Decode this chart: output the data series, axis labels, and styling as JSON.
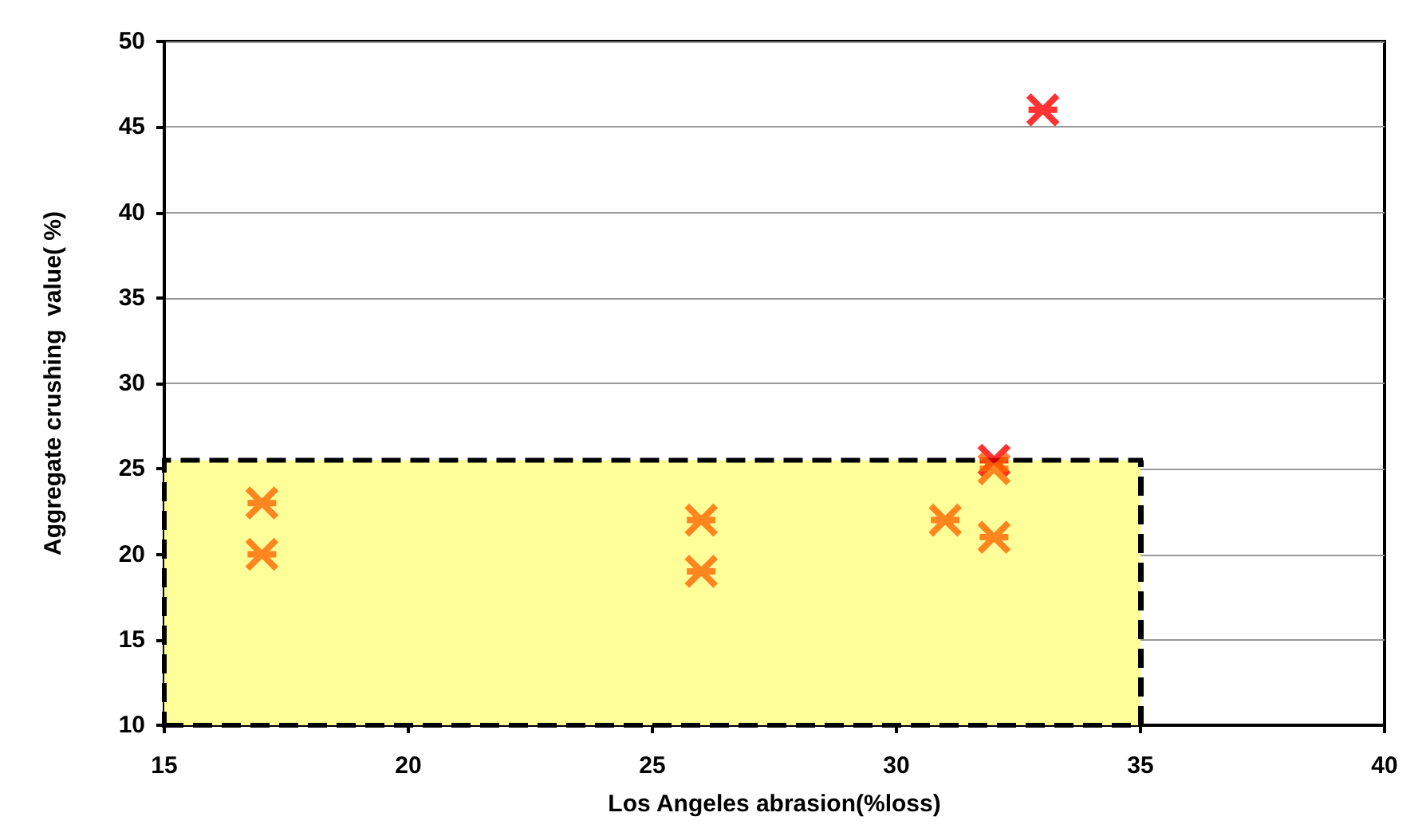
{
  "chart_data": {
    "type": "scatter",
    "xlabel": "Los Angeles abrasion(%loss)",
    "ylabel": "Aggregate crushing  value( %)",
    "xlim": [
      15,
      40
    ],
    "xticks": [
      15,
      20,
      25,
      30,
      35,
      40
    ],
    "ylim": [
      10,
      50
    ],
    "yticks": [
      10,
      15,
      20,
      25,
      30,
      35,
      40,
      45,
      50
    ],
    "grid": "y",
    "marker": "cross",
    "bands": [
      {
        "axis": "y",
        "from": 10,
        "to": 25.5,
        "color": "#ffff99"
      }
    ],
    "ref_lines": [
      {
        "axis": "x",
        "value": 35,
        "color": "#000000",
        "line_style": "dashed"
      }
    ],
    "series": [
      {
        "color": "#ff0000",
        "x": [
          33,
          32
        ],
        "values": [
          46,
          25.5
        ]
      },
      {
        "color": "#ff6600",
        "x": [
          17,
          17,
          26,
          26,
          31,
          32,
          32
        ],
        "values": [
          23,
          20,
          22,
          19,
          22,
          21,
          25
        ]
      }
    ]
  }
}
